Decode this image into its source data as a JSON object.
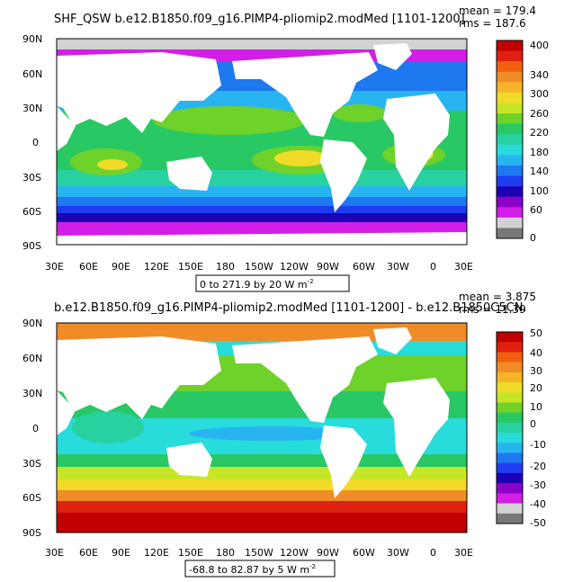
{
  "panels": [
    {
      "title": "SHF_QSW b.e12.B1850.f09_g16.PIMP4-pliomip2.modMed [1101-1200]",
      "stat_mean": "mean = 179.4",
      "stat_rms": "rms = 187.6",
      "range_label": "0 to 271.9 by 20  W m",
      "range_sup": "-2",
      "colorbar_labels": [
        "400",
        "340",
        "300",
        "260",
        "220",
        "180",
        "140",
        "100",
        "60",
        "0"
      ],
      "colors": [
        "#c00000",
        "#e02010",
        "#f06010",
        "#f08c28",
        "#f5b428",
        "#f0dc28",
        "#c8e628",
        "#6ed22a",
        "#28c864",
        "#28d2a0",
        "#28dcdc",
        "#28b4f0",
        "#1e78f0",
        "#1e3cf0",
        "#1e00b4",
        "#8c00c8",
        "#d21ee6",
        "#d2d2d2",
        "#787878"
      ]
    },
    {
      "title": "b.e12.B1850.f09_g16.PIMP4-pliomip2.modMed [1101-1200] - b.e12.B1850C5CN.",
      "stat_mean": "mean = 3.875",
      "stat_rms": "rms = 11.39",
      "range_label": "-68.8 to 82.87 by 5  W m",
      "range_sup": "-2",
      "colorbar_labels": [
        "50",
        "40",
        "30",
        "20",
        "10",
        "0",
        "-10",
        "-20",
        "-30",
        "-40",
        "-50"
      ],
      "colors": [
        "#c00000",
        "#e02010",
        "#f06010",
        "#f08c28",
        "#f5b428",
        "#f0dc28",
        "#c8e628",
        "#6ed22a",
        "#28c864",
        "#28d2a0",
        "#28dcdc",
        "#28b4f0",
        "#1e78f0",
        "#1e3cf0",
        "#1e00b4",
        "#8c00c8",
        "#d21ee6",
        "#d2d2d2",
        "#787878"
      ]
    }
  ],
  "lat_labels": [
    "90N",
    "60N",
    "30N",
    "0",
    "30S",
    "60S",
    "90S"
  ],
  "lon_labels": [
    "30E",
    "60E",
    "90E",
    "120E",
    "150E",
    "180",
    "150W",
    "120W",
    "90W",
    "60W",
    "30W",
    "0",
    "30E"
  ],
  "land_color": "#ffffff"
}
